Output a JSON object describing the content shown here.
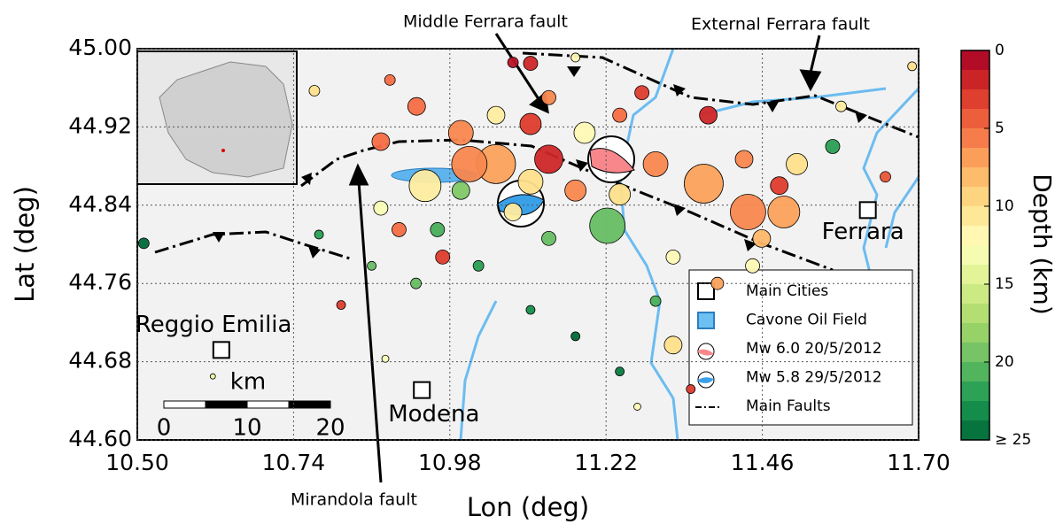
{
  "chart_data": {
    "type": "scatter",
    "xlabel": "Lon (deg)",
    "ylabel": "Lat (deg)",
    "xlim": [
      10.5,
      11.7
    ],
    "ylim": [
      44.6,
      45.0
    ],
    "xticks": [
      {
        "value": 10.5,
        "label": "10.50"
      },
      {
        "value": 10.74,
        "label": "10.74"
      },
      {
        "value": 10.98,
        "label": "10.98"
      },
      {
        "value": 11.22,
        "label": "11.22"
      },
      {
        "value": 11.46,
        "label": "11.46"
      },
      {
        "value": 11.7,
        "label": "11.70"
      }
    ],
    "yticks": [
      {
        "value": 44.6,
        "label": "44.60"
      },
      {
        "value": 44.68,
        "label": "44.68"
      },
      {
        "value": 44.76,
        "label": "44.76"
      },
      {
        "value": 44.84,
        "label": "44.84"
      },
      {
        "value": 44.92,
        "label": "44.92"
      },
      {
        "value": 45.0,
        "label": "45.00"
      }
    ],
    "grid": true,
    "colorbar": {
      "label": "Depth (km)",
      "clim": [
        0,
        25
      ],
      "ticks": [
        0,
        5,
        10,
        15,
        20,
        {
          "value": 25,
          "label": "≥ 25"
        }
      ]
    },
    "x": [
      11.222,
      11.438,
      11.493,
      11.37,
      11.051,
      11.01,
      10.942,
      11.132,
      11.104,
      11.296,
      11.513,
      11.323,
      11.568,
      10.51,
      10.772,
      11.69,
      11.275,
      11.104,
      11.377,
      10.874,
      11.173,
      11.241,
      11.077,
      11.132,
      11.024,
      10.928,
      11.104,
      11.173,
      11.241,
      11.35,
      11.268,
      10.969,
      10.86,
      10.813,
      10.779,
      10.902,
      10.997,
      10.929,
      10.888,
      11.445,
      11.459,
      11.581,
      11.649,
      11.187,
      11.051,
      11.323,
      11.391,
      11.296,
      10.874,
      10.961,
      10.881,
      10.616,
      11.077,
      11.173,
      11.132,
      11.241,
      11.432,
      11.486,
      10.997,
      11.104
    ],
    "y": [
      44.819,
      44.833,
      44.833,
      44.862,
      44.882,
      44.882,
      44.86,
      44.887,
      44.923,
      44.882,
      44.882,
      44.697,
      44.9,
      44.801,
      44.957,
      44.982,
      44.955,
      44.985,
      44.932,
      44.905,
      44.855,
      44.851,
      44.833,
      44.806,
      44.778,
      44.76,
      44.733,
      44.706,
      44.67,
      44.652,
      44.634,
      44.787,
      44.778,
      44.738,
      44.81,
      44.815,
      44.914,
      44.941,
      44.968,
      44.778,
      44.806,
      44.941,
      44.869,
      44.914,
      44.932,
      44.787,
      44.76,
      44.742,
      44.837,
      44.815,
      44.683,
      44.665,
      44.986,
      44.991,
      44.95,
      44.932,
      44.887,
      44.86,
      44.855,
      44.864
    ],
    "depth": [
      20,
      6,
      7,
      7,
      7,
      6,
      11,
      2,
      3,
      6,
      10,
      10,
      22,
      25,
      10,
      10,
      3,
      2,
      2,
      5,
      6,
      10,
      11,
      20,
      22,
      20,
      23,
      25,
      24,
      3,
      12,
      3,
      20,
      3,
      22,
      5,
      6,
      5,
      5,
      12,
      8,
      11,
      4,
      12,
      11,
      12,
      7,
      21,
      13,
      21,
      13,
      14,
      1,
      12,
      6,
      5,
      6,
      3,
      19,
      10
    ],
    "sizes": [
      20,
      20,
      18,
      22,
      22,
      20,
      18,
      16,
      12,
      14,
      12,
      10,
      8,
      6,
      6,
      5,
      8,
      8,
      10,
      10,
      12,
      12,
      10,
      8,
      6,
      6,
      5,
      5,
      5,
      5,
      4,
      8,
      5,
      5,
      5,
      8,
      14,
      10,
      6,
      8,
      10,
      6,
      6,
      12,
      10,
      8,
      7,
      6,
      8,
      8,
      4,
      3,
      6,
      5,
      8,
      8,
      10,
      10,
      10,
      14
    ],
    "cities": [
      {
        "name": "Reggio Emilia",
        "lon": 10.629,
        "lat": 44.692
      },
      {
        "name": "Modena",
        "lon": 10.937,
        "lat": 44.651
      },
      {
        "name": "Ferrara",
        "lon": 11.622,
        "lat": 44.835
      }
    ],
    "annotations": [
      "Middle Ferrara fault",
      "External Ferrara fault",
      "Mirandola fault"
    ],
    "scale_bar": {
      "unit": "km",
      "ticks": [
        0,
        10,
        20
      ]
    },
    "legend": {
      "entries": [
        "Main Cities",
        "Cavone Oil Field",
        "Mw 6.0 20/5/2012",
        "Mw 5.8 29/5/2012",
        "Main Faults"
      ]
    }
  }
}
